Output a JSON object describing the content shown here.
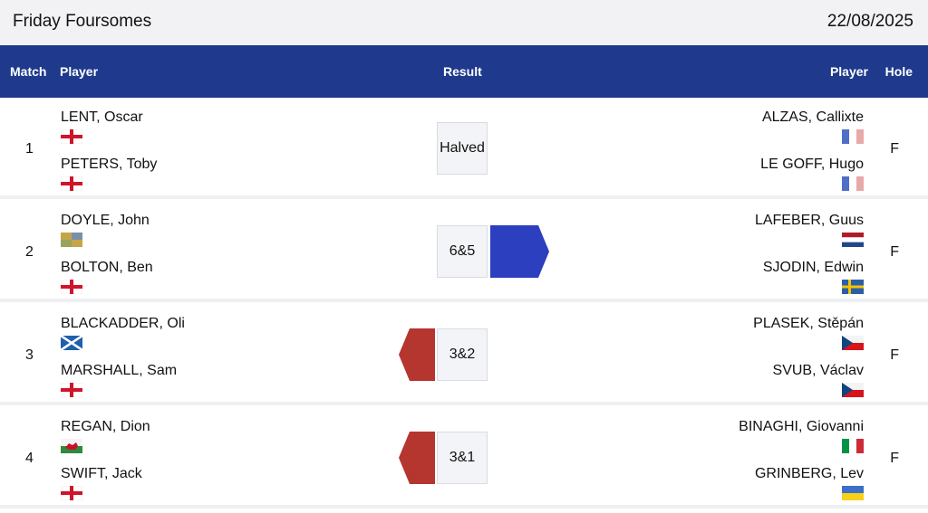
{
  "page": {
    "title": "Friday Foursomes",
    "date": "22/08/2025"
  },
  "columns": {
    "match": "Match",
    "player_left": "Player",
    "result": "Result",
    "player_right": "Player",
    "hole": "Hole"
  },
  "colors": {
    "header": "#1f3a8c",
    "left_team": "#b5352f",
    "right_team": "#2c3fbf"
  },
  "matches": [
    {
      "number": "1",
      "left": [
        {
          "name": "LENT, Oscar",
          "flag": "england-flag"
        },
        {
          "name": "PETERS, Toby",
          "flag": "england-flag"
        }
      ],
      "result": "Halved",
      "winner": "none",
      "right": [
        {
          "name": "ALZAS, Callixte",
          "flag": "france-flag"
        },
        {
          "name": "LE GOFF, Hugo",
          "flag": "france-flag"
        }
      ],
      "hole": "F"
    },
    {
      "number": "2",
      "left": [
        {
          "name": "DOYLE, John",
          "flag": "ireland-flag"
        },
        {
          "name": "BOLTON, Ben",
          "flag": "england-flag"
        }
      ],
      "result": "6&5",
      "winner": "right",
      "right": [
        {
          "name": "LAFEBER, Guus",
          "flag": "netherlands-flag"
        },
        {
          "name": "SJODIN, Edwin",
          "flag": "sweden-flag"
        }
      ],
      "hole": "F"
    },
    {
      "number": "3",
      "left": [
        {
          "name": "BLACKADDER, Oli",
          "flag": "scotland-flag"
        },
        {
          "name": "MARSHALL, Sam",
          "flag": "england-flag"
        }
      ],
      "result": "3&2",
      "winner": "left",
      "right": [
        {
          "name": "PLASEK, Stěpán",
          "flag": "czech-flag"
        },
        {
          "name": "SVUB, Václav",
          "flag": "czech-flag"
        }
      ],
      "hole": "F"
    },
    {
      "number": "4",
      "left": [
        {
          "name": "REGAN, Dion",
          "flag": "wales-flag"
        },
        {
          "name": "SWIFT, Jack",
          "flag": "england-flag"
        }
      ],
      "result": "3&1",
      "winner": "left",
      "right": [
        {
          "name": "BINAGHI, Giovanni",
          "flag": "italy-flag"
        },
        {
          "name": "GRINBERG, Lev",
          "flag": "ukraine-flag"
        }
      ],
      "hole": "F"
    }
  ]
}
